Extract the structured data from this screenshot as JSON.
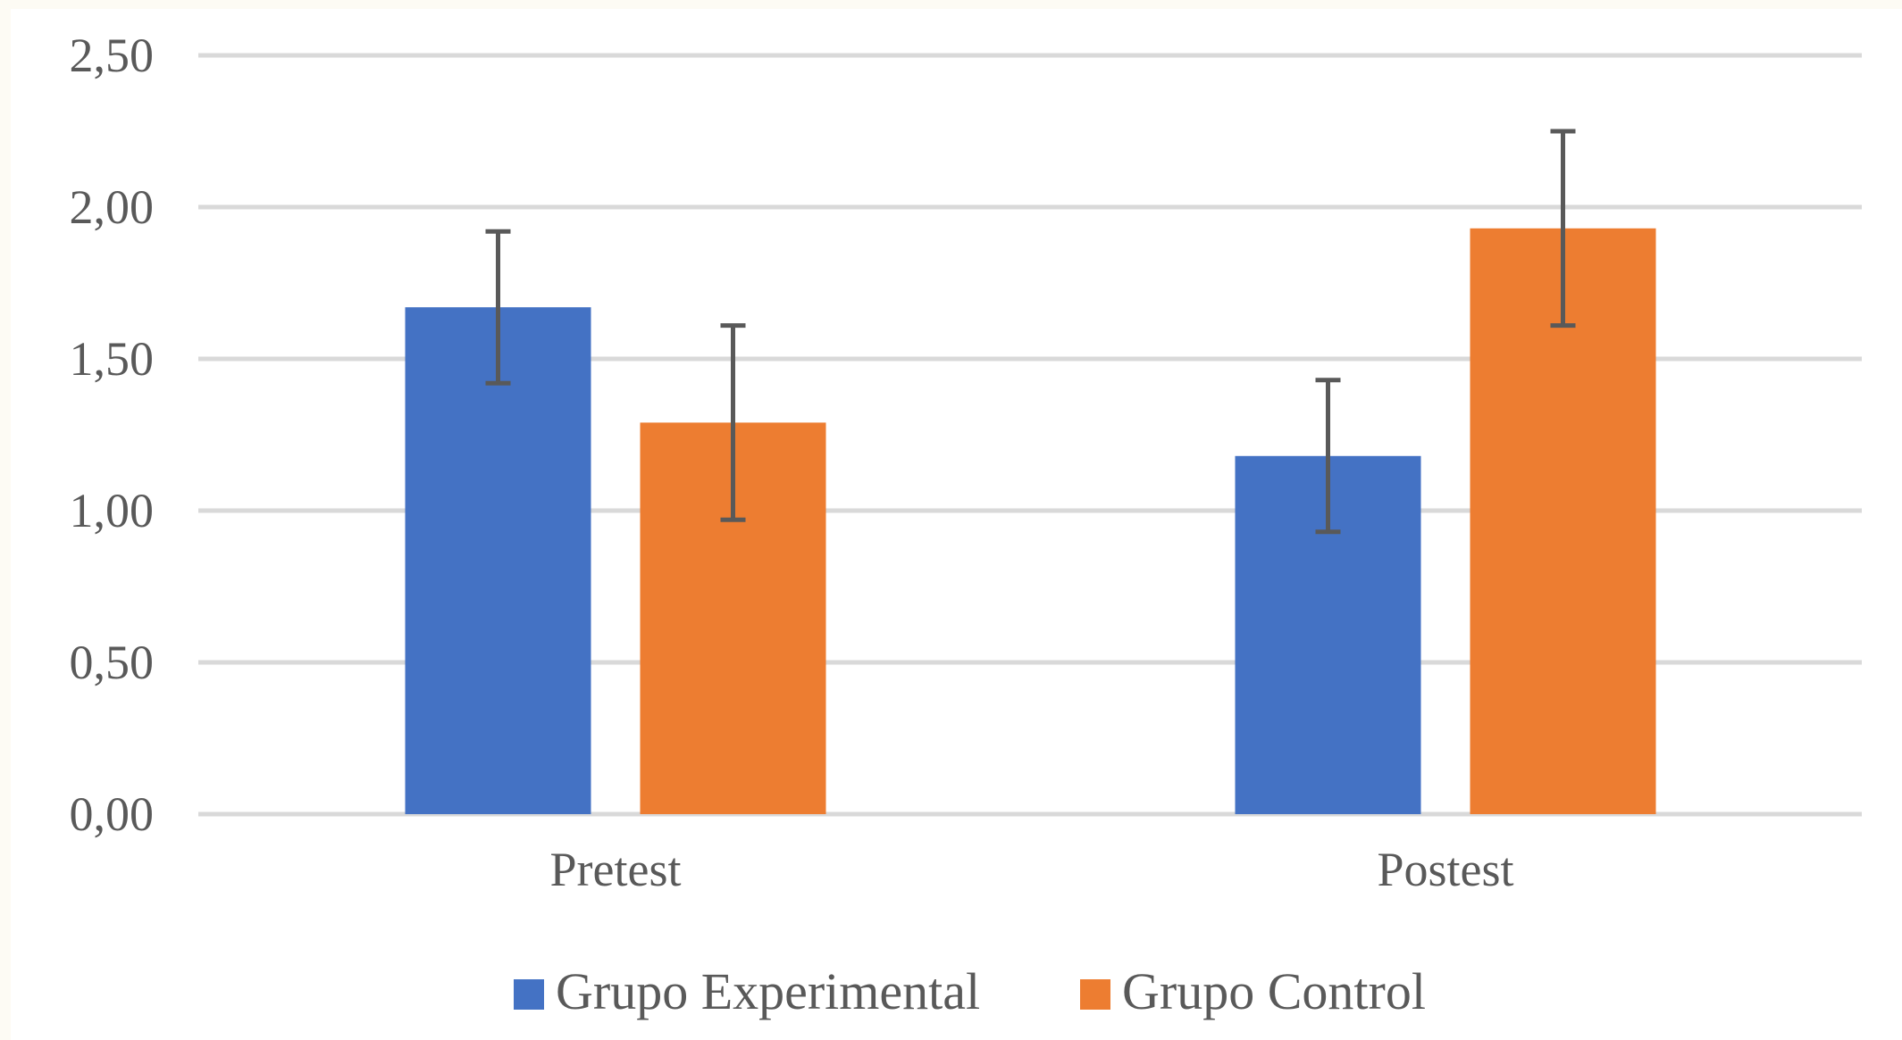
{
  "chart_data": {
    "type": "bar",
    "categories": [
      "Pretest",
      "Postest"
    ],
    "series": [
      {
        "name": "Grupo Experimental",
        "values": [
          1.67,
          1.18
        ],
        "error": [
          0.25,
          0.25
        ],
        "color": "#4472C4"
      },
      {
        "name": "Grupo Control",
        "values": [
          1.29,
          1.93
        ],
        "error": [
          0.32,
          0.32
        ],
        "color": "#ED7D31"
      }
    ],
    "ylim": [
      0,
      2.5
    ],
    "yticks": [
      "0,00",
      "0,50",
      "1,00",
      "1,50",
      "2,00",
      "2,50"
    ],
    "grid": true,
    "legend_position": "bottom"
  }
}
